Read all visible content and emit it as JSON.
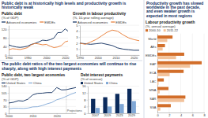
{
  "headings": [
    "Public debt is at historically high levels and productivity growth is historically weak",
    "Productivity growth has slowed worldwide in the past decade, and even weaker growth is expected in most regions",
    "The public debt ratios of the two largest economies will continue to rise sharply, along with high interest payments"
  ],
  "chart_data": [
    {
      "type": "line",
      "title": "Public debt",
      "subtitle": "(% of GDP)",
      "x": [
        1960,
        1964,
        1968,
        1972,
        1976,
        1980,
        1984,
        1988,
        1992,
        1996,
        2000,
        2004,
        2008,
        2012,
        2016,
        2020,
        2023
      ],
      "series": [
        {
          "name": "Advanced economies",
          "color": "#0b2a5b",
          "values": [
            48,
            42,
            38,
            36,
            38,
            42,
            50,
            55,
            62,
            70,
            68,
            72,
            80,
            105,
            106,
            123,
            112
          ]
        },
        {
          "name": "EMDEs",
          "color": "#e8772e",
          "values": [
            25,
            30,
            28,
            26,
            30,
            35,
            48,
            55,
            52,
            48,
            50,
            42,
            35,
            38,
            45,
            62,
            66
          ]
        }
      ],
      "xlim": [
        1960,
        2023
      ],
      "xticks": [
        1960,
        1980,
        2000,
        2020
      ],
      "ylim": [
        0,
        140
      ],
      "yticks": [
        0,
        40,
        80,
        120
      ],
      "grid": true,
      "legend": "top"
    },
    {
      "type": "line",
      "title": "Growth in labour productivity",
      "subtitle": "(%, 10-year rolling average)",
      "x": [
        1990,
        1993,
        1996,
        1999,
        2002,
        2005,
        2008,
        2011,
        2014,
        2017,
        2020,
        2023
      ],
      "series": [
        {
          "name": "Advanced economies",
          "color": "#0b2a5b",
          "values": [
            2.0,
            1.9,
            1.8,
            1.9,
            2.0,
            1.8,
            1.6,
            1.2,
            1.0,
            0.9,
            0.8,
            0.8
          ]
        },
        {
          "name": "EMDEs",
          "color": "#e8772e",
          "values": [
            2.0,
            1.8,
            2.2,
            2.6,
            3.2,
            3.8,
            4.2,
            4.0,
            3.4,
            2.9,
            2.6,
            2.4
          ]
        }
      ],
      "xlim": [
        1990,
        2023
      ],
      "xticks": [
        1990,
        2000,
        2010,
        2020
      ],
      "ylim": [
        0,
        5
      ],
      "yticks": [
        0,
        1,
        2,
        3,
        4,
        5
      ],
      "grid": true,
      "legend": "top"
    },
    {
      "type": "bar",
      "orientation": "horizontal",
      "title": "Labour productivity growth",
      "subtitle": "(%, annual average)",
      "categories": [
        "World",
        "AEs",
        "EMDEs",
        "EAP",
        "ECA",
        "LAC",
        "MNA",
        "SAR",
        "SSA"
      ],
      "series": [
        {
          "name": "2000-10",
          "color": "#d26e2a",
          "values": [
            2.6,
            1.3,
            4.6,
            7.6,
            4.5,
            1.1,
            1.9,
            4.8,
            2.3
          ]
        },
        {
          "name": "2011-22",
          "color": "#f2c29b",
          "values": [
            1.7,
            0.9,
            3.2,
            5.6,
            2.1,
            0.2,
            0.4,
            4.6,
            0.5
          ]
        }
      ],
      "xlim": [
        0,
        8
      ],
      "xticks": [
        0,
        2,
        4,
        6,
        8
      ],
      "grid": true,
      "legend": "top"
    },
    {
      "type": "line",
      "title": "Public debt, two largest economies",
      "subtitle": "(% of GDP)",
      "x": [
        2000,
        2002,
        2004,
        2006,
        2008,
        2010,
        2012,
        2014,
        2016,
        2018,
        2020,
        2022,
        2024,
        2026,
        2028
      ],
      "series": [
        {
          "name": "United States",
          "color": "#0b2a5b",
          "values": [
            53,
            57,
            65,
            63,
            73,
            95,
            103,
            104,
            107,
            107,
            133,
            121,
            122,
            128,
            133
          ]
        },
        {
          "name": "China",
          "color": "#7fa7d6",
          "values": [
            23,
            26,
            26,
            25,
            27,
            33,
            34,
            40,
            49,
            56,
            70,
            77,
            88,
            99,
            108
          ]
        }
      ],
      "xlim": [
        2000,
        2028
      ],
      "xticks": [
        2000,
        2010,
        2020
      ],
      "ylim": [
        0,
        140
      ],
      "yticks": [
        0,
        35,
        70,
        105,
        140
      ],
      "grid": true,
      "legend": "top",
      "annotations": [
        {
          "text": "Projections",
          "x": 2024
        }
      ]
    },
    {
      "type": "bar",
      "title": "Debt interest payments",
      "subtitle": "(% of revenue)",
      "categories": [
        "2007",
        "2019",
        "2023",
        "2029"
      ],
      "series": [
        {
          "name": "United States",
          "color": "#0b2a5b",
          "values": [
            8.5,
            9.5,
            11.5,
            14.5
          ]
        },
        {
          "name": "China",
          "color": "#7fa7d6",
          "values": [
            3.2,
            4.0,
            5.5,
            7.2
          ]
        }
      ],
      "ylim": [
        0,
        16
      ],
      "yticks": [
        0,
        4,
        8,
        12,
        16
      ],
      "grid": true,
      "legend": "top"
    }
  ]
}
